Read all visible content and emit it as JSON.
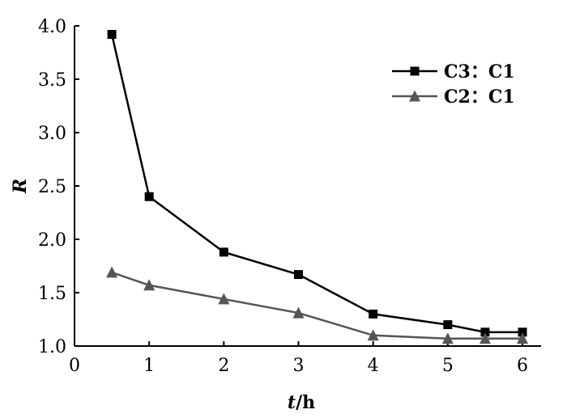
{
  "chart_data": {
    "type": "line",
    "title": "",
    "xlabel": "t/h",
    "xlabel_var": "t",
    "xlabel_unit": "/h",
    "ylabel": "R",
    "xlim": [
      0,
      6
    ],
    "ylim": [
      1.0,
      4.0
    ],
    "xticks": [
      "0",
      "1",
      "2",
      "3",
      "4",
      "5",
      "6"
    ],
    "yticks": [
      "1.0",
      "1.5",
      "2.0",
      "2.5",
      "3.0",
      "3.5",
      "4.0"
    ],
    "grid": false,
    "legend_position": "top-right",
    "series": [
      {
        "name": "C3：C1",
        "marker": "square",
        "color": "#000000",
        "points": [
          {
            "x": 0.5,
            "y": 3.92
          },
          {
            "x": 1.0,
            "y": 2.4
          },
          {
            "x": 2.0,
            "y": 1.88
          },
          {
            "x": 3.0,
            "y": 1.67
          },
          {
            "x": 4.0,
            "y": 1.3
          },
          {
            "x": 5.0,
            "y": 1.2
          },
          {
            "x": 5.5,
            "y": 1.13
          },
          {
            "x": 6.0,
            "y": 1.13
          }
        ]
      },
      {
        "name": "C2：C1",
        "marker": "triangle",
        "color": "#555555",
        "points": [
          {
            "x": 0.5,
            "y": 1.69
          },
          {
            "x": 1.0,
            "y": 1.57
          },
          {
            "x": 2.0,
            "y": 1.44
          },
          {
            "x": 3.0,
            "y": 1.31
          },
          {
            "x": 4.0,
            "y": 1.1
          },
          {
            "x": 5.0,
            "y": 1.07
          },
          {
            "x": 5.5,
            "y": 1.07
          },
          {
            "x": 6.0,
            "y": 1.07
          }
        ]
      }
    ]
  }
}
